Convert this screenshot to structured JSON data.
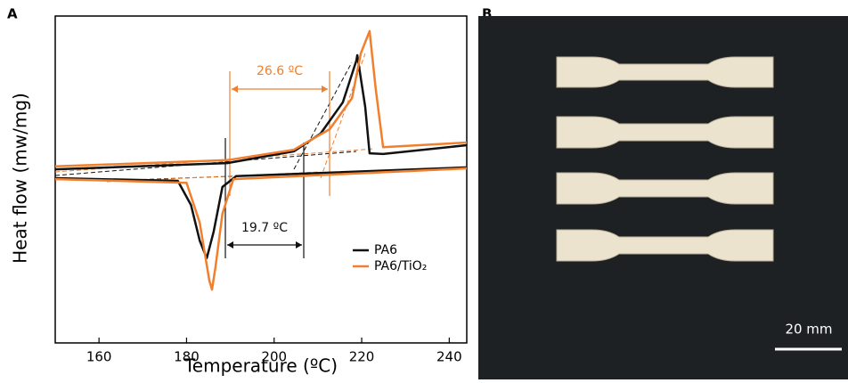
{
  "panel_labels": [
    "A",
    "B"
  ],
  "chart_data": {
    "type": "line",
    "xlabel": "Temperature (ºC)",
    "ylabel": "Heat flow (mw/mg)",
    "xlim": [
      150,
      244
    ],
    "xticks": [
      160,
      180,
      200,
      220,
      240
    ],
    "ylim": [
      0,
      100
    ],
    "series": [
      {
        "name": "PA6",
        "color": "#111111",
        "x": [
          150,
          189.3,
          204.5,
          210.6,
          215.7,
          218.8,
          219,
          220.8,
          221.8,
          224.9,
          244
        ],
        "values": [
          53.1,
          55.0,
          58.6,
          64.0,
          73.6,
          86.4,
          88.0,
          72.2,
          58.0,
          57.8,
          60.5
        ]
      },
      {
        "name": "PA6/TiO₂",
        "color": "#f07f2e",
        "x": [
          150,
          189.3,
          204.5,
          212.7,
          217.8,
          219.8,
          221.8,
          223.2,
          224.9,
          244
        ],
        "values": [
          54.0,
          55.9,
          59.1,
          65.4,
          74.9,
          88.6,
          95.4,
          77.7,
          59.9,
          61.3
        ]
      },
      {
        "name": null,
        "color": "#111111",
        "x": [
          150,
          178,
          181,
          183,
          184.6,
          186.2,
          188.2,
          191.3,
          244
        ],
        "values": [
          50.4,
          49.6,
          42.2,
          31.3,
          25.9,
          34.1,
          47.7,
          51.0,
          53.7
        ]
      },
      {
        "name": null,
        "color": "#f07f2e",
        "x": [
          150,
          180,
          183,
          185.2,
          185.8,
          186.6,
          188.2,
          190.7,
          244
        ],
        "values": [
          50.1,
          49.0,
          36.8,
          19.1,
          16.3,
          23.2,
          39.5,
          50.1,
          53.4
        ]
      }
    ],
    "annotations": [
      "26.6 ºC",
      "19.7 ºC"
    ]
  },
  "photo": {
    "scale_bar": "20 mm"
  }
}
